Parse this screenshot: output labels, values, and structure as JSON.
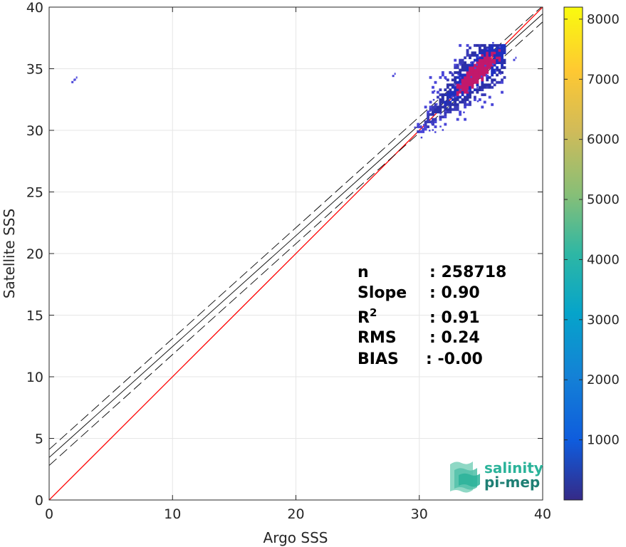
{
  "chart_data": {
    "type": "heatmap",
    "xlabel": "Argo SSS",
    "ylabel": "Satellite SSS",
    "xlim": [
      0,
      40
    ],
    "ylim": [
      0,
      40
    ],
    "xticks": [
      "0",
      "10",
      "20",
      "30",
      "40"
    ],
    "yticks": [
      "0",
      "5",
      "10",
      "15",
      "20",
      "25",
      "30",
      "35",
      "40"
    ],
    "grid": true,
    "colorbar": {
      "min": 0,
      "max": 8200,
      "ticks": [
        "1000",
        "2000",
        "3000",
        "4000",
        "5000",
        "6000",
        "7000",
        "8000"
      ],
      "colormap": "parula"
    },
    "identity_line": {
      "slope": 1,
      "intercept": 0,
      "color": "#ff0000"
    },
    "fit_line": {
      "slope": 0.9,
      "intercept": 3.45,
      "band": 0.65,
      "color": "#000000"
    },
    "density": {
      "main_cluster": {
        "x_range": [
          29.8,
          37
        ],
        "y_range": [
          29.8,
          37
        ],
        "center": [
          34.5,
          34.6
        ]
      },
      "outliers": [
        [
          2.0,
          34.2
        ],
        [
          1.8,
          34.0
        ],
        [
          27.8,
          34.5
        ],
        [
          37.6,
          35.8
        ]
      ]
    },
    "stats": [
      {
        "label": "n",
        "value": ": 258718"
      },
      {
        "label": "Slope",
        "value": ": 0.90"
      },
      {
        "label": "R",
        "sup": "2",
        "value": ": 0.91"
      },
      {
        "label": "RMS",
        "value": ": 0.24"
      },
      {
        "label": "BIAS",
        "value": ": -0.00"
      }
    ]
  },
  "logo": {
    "line1": "salinity",
    "line2": "pi-mep",
    "color1": "#2bb39a",
    "color2": "#1e7f74"
  }
}
